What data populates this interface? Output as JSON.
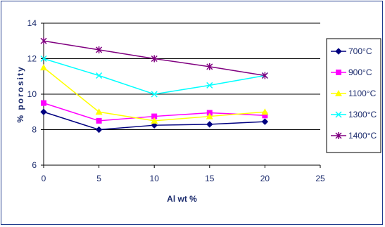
{
  "chart_data": {
    "type": "line",
    "title": "",
    "xlabel": "Al wt %",
    "ylabel": "% porosity",
    "x_ticks": [
      0,
      5,
      10,
      15,
      20,
      25
    ],
    "y_ticks": [
      6,
      8,
      10,
      12,
      14
    ],
    "xlim": [
      0,
      25
    ],
    "ylim": [
      6,
      14
    ],
    "grid": "horizontal",
    "legend_position": "right",
    "x": [
      0,
      5,
      10,
      15,
      20
    ],
    "series": [
      {
        "name": "700°C",
        "color": "#000080",
        "marker": "diamond",
        "values": [
          9.0,
          8.0,
          8.25,
          8.3,
          8.45
        ]
      },
      {
        "name": "900°C",
        "color": "#ff00ff",
        "marker": "square",
        "values": [
          9.5,
          8.5,
          8.75,
          8.95,
          8.8
        ]
      },
      {
        "name": "1100°C",
        "color": "#ffff00",
        "marker": "triangle",
        "values": [
          11.5,
          9.0,
          8.5,
          8.75,
          9.0
        ]
      },
      {
        "name": "1300°C",
        "color": "#00ffff",
        "marker": "x",
        "values": [
          12.0,
          11.05,
          10.0,
          10.5,
          11.05
        ]
      },
      {
        "name": "1400°C",
        "color": "#800080",
        "marker": "star",
        "values": [
          13.0,
          12.5,
          12.0,
          11.55,
          11.05
        ]
      }
    ]
  }
}
